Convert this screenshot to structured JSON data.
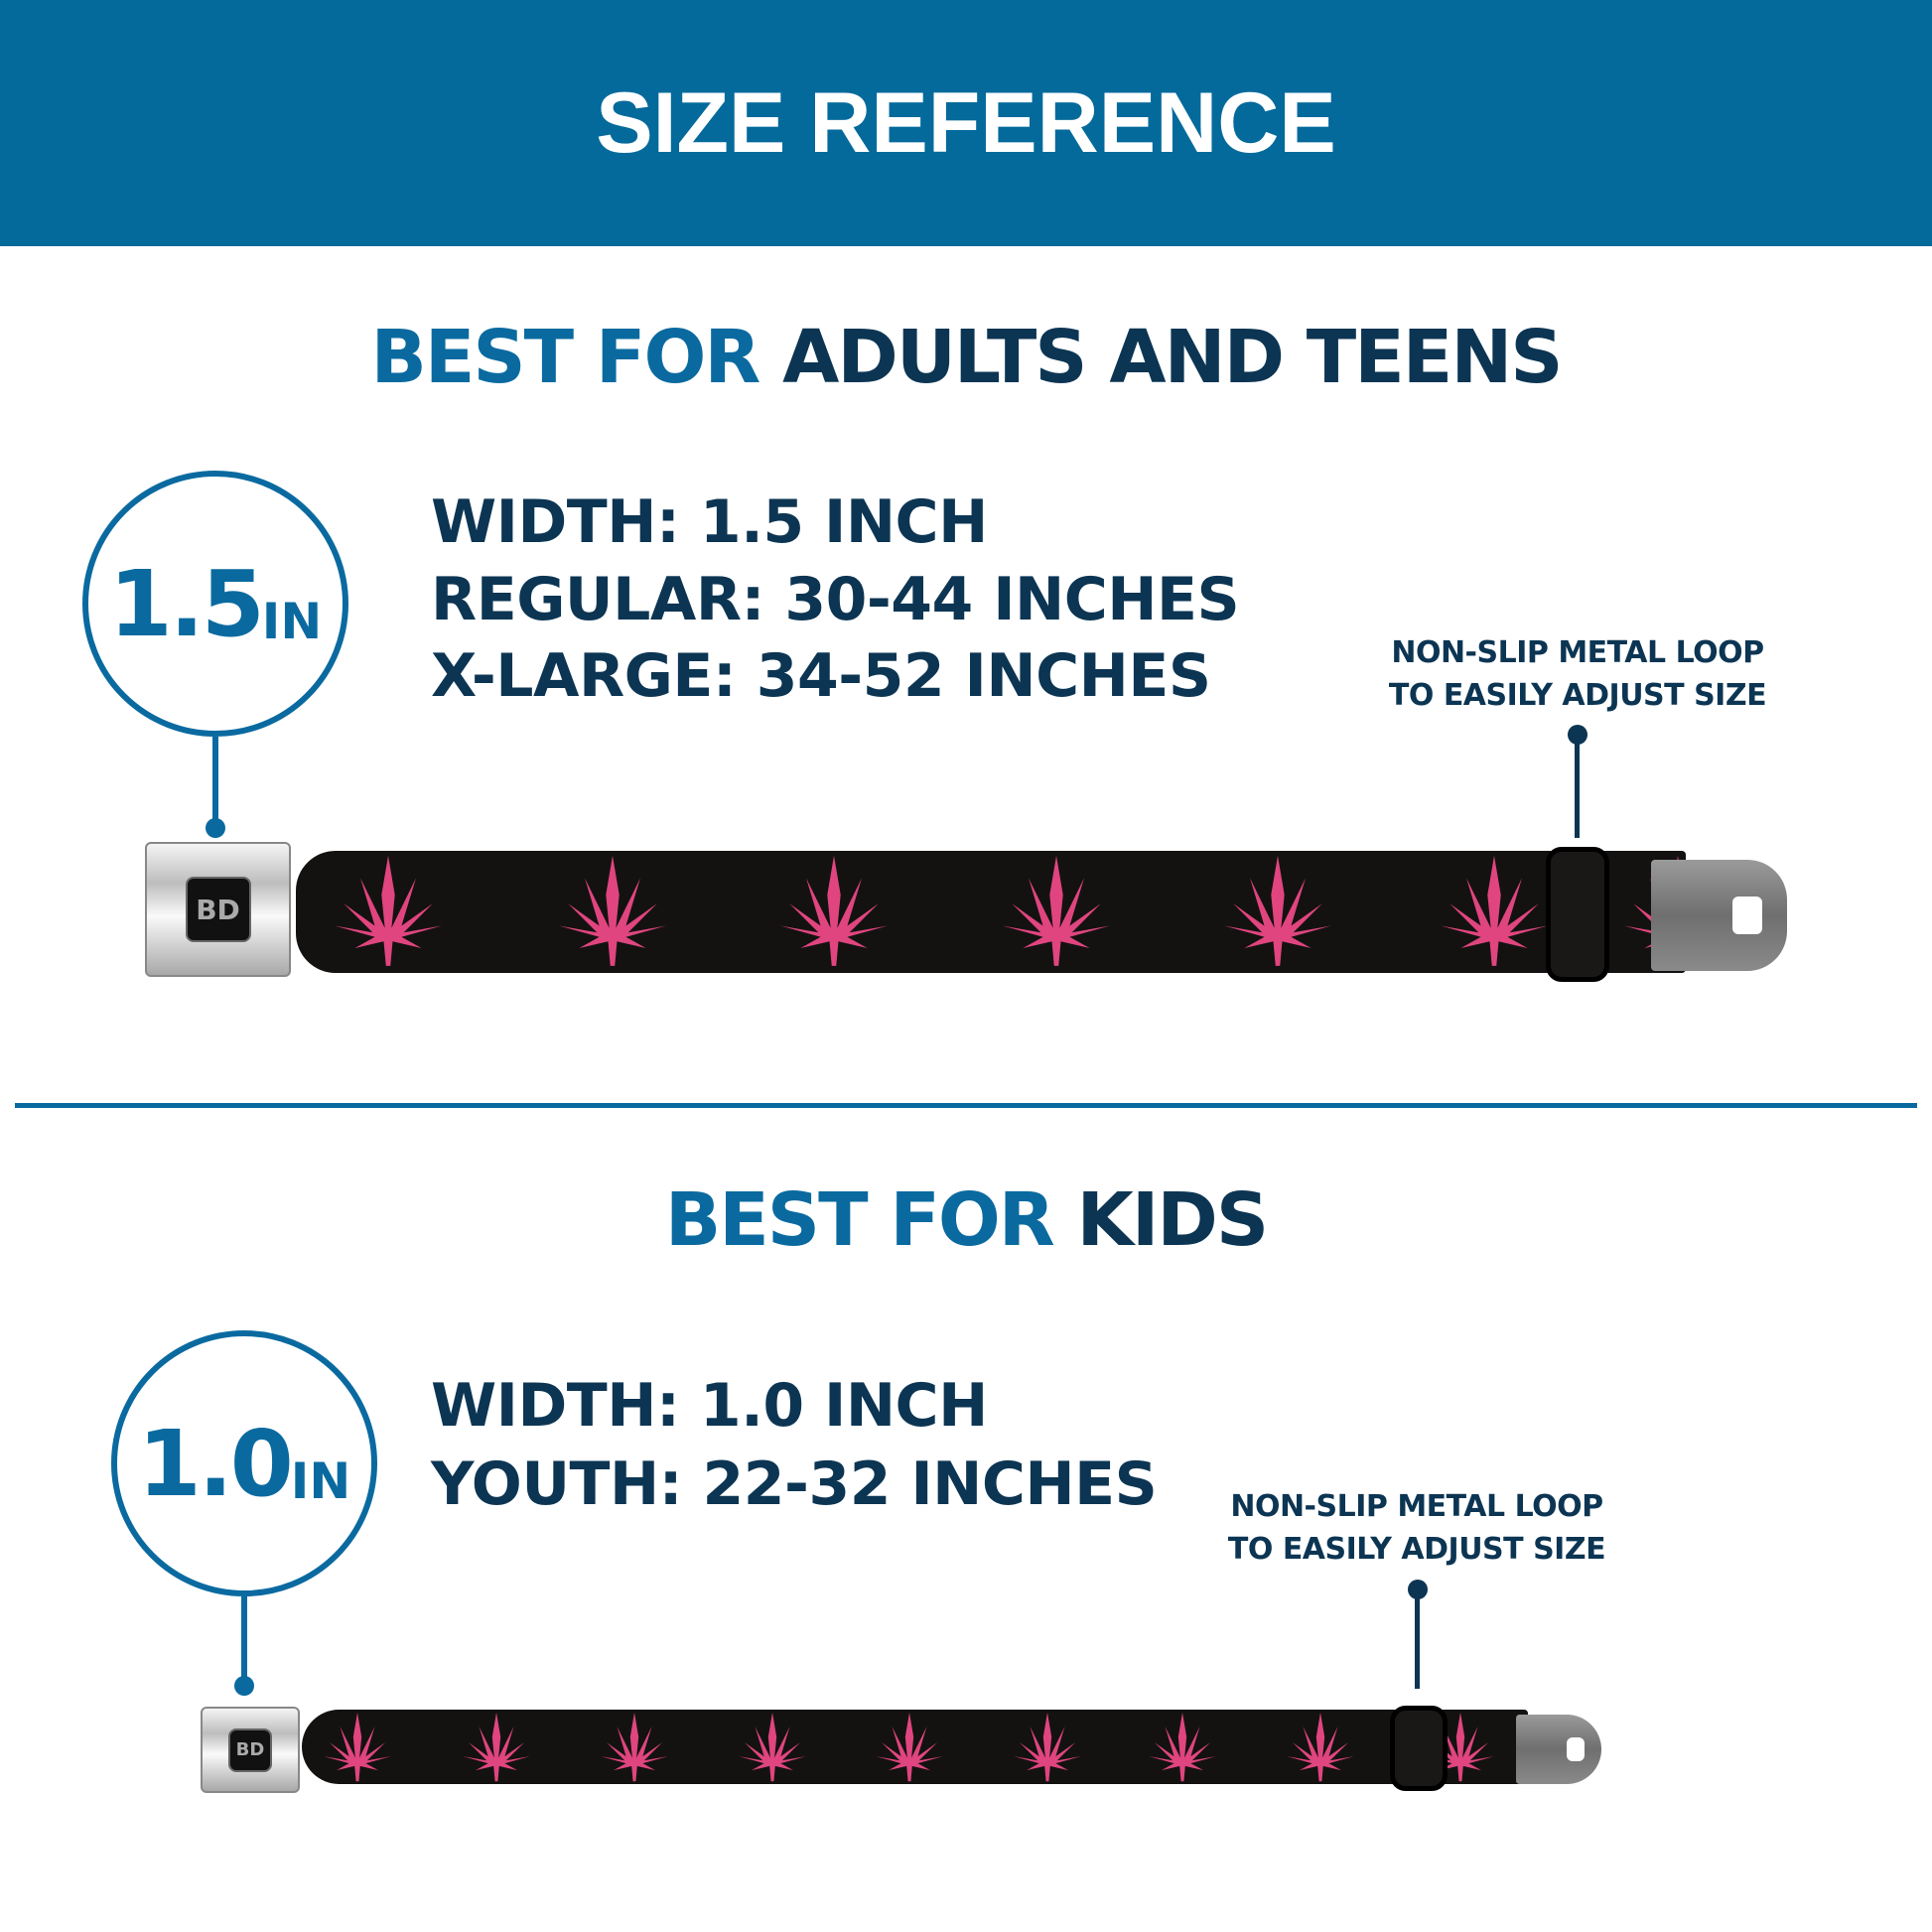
{
  "header": {
    "title": "SIZE REFERENCE",
    "background_color": "#046a9b"
  },
  "adults": {
    "heading_prefix": "BEST FOR",
    "heading_main": "ADULTS AND TEENS",
    "badge_value": "1.5",
    "badge_unit": "IN",
    "specs": [
      "WIDTH: 1.5 INCH",
      "REGULAR: 30-44 INCHES",
      "X-LARGE: 34-52 INCHES"
    ],
    "note_lines": [
      "NON-SLIP METAL LOOP",
      "TO EASILY ADJUST SIZE"
    ],
    "buckle_logo": "BD"
  },
  "kids": {
    "heading_prefix": "BEST FOR",
    "heading_main": "KIDS",
    "badge_value": "1.0",
    "badge_unit": "IN",
    "specs": [
      "WIDTH: 1.0 INCH",
      "YOUTH: 22-32 INCHES"
    ],
    "note_lines": [
      "NON-SLIP METAL LOOP",
      "TO EASILY ADJUST SIZE"
    ],
    "buckle_logo": "BD"
  },
  "colors": {
    "accent_blue": "#0a6aa0",
    "navy": "#0c3553",
    "strap": "#141211",
    "leaf_pink": "#e0457f"
  }
}
